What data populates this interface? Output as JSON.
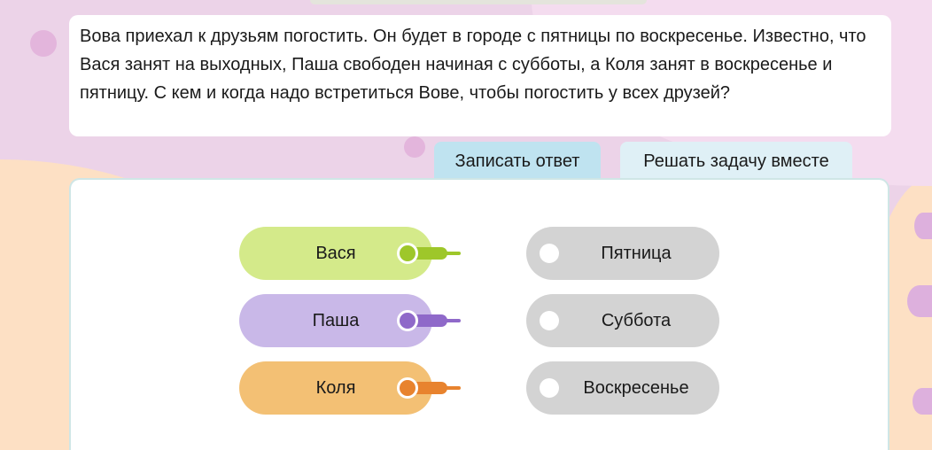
{
  "task": {
    "text": "Вова приехал к друзьям погостить. Он будет в городе с пятницы по воскресенье. Известно, что Вася занят на выходных, Паша свободен начиная с субботы, а Коля занят в воскресенье и пятницу. С кем и когда надо встретиться Вове, чтобы погостить у всех друзей?"
  },
  "buttons": {
    "submit": "Записать ответ",
    "solve_together": "Решать задачу вместе"
  },
  "friends": [
    {
      "label": "Вася",
      "color": "#d4ea8a",
      "connector_color": "#9ec72a"
    },
    {
      "label": "Паша",
      "color": "#c9b8e8",
      "connector_color": "#8f69c9"
    },
    {
      "label": "Коля",
      "color": "#f3c074",
      "connector_color": "#e8832e"
    }
  ],
  "days": [
    {
      "label": "Пятница"
    },
    {
      "label": "Суббота"
    },
    {
      "label": "Воскресенье"
    }
  ]
}
